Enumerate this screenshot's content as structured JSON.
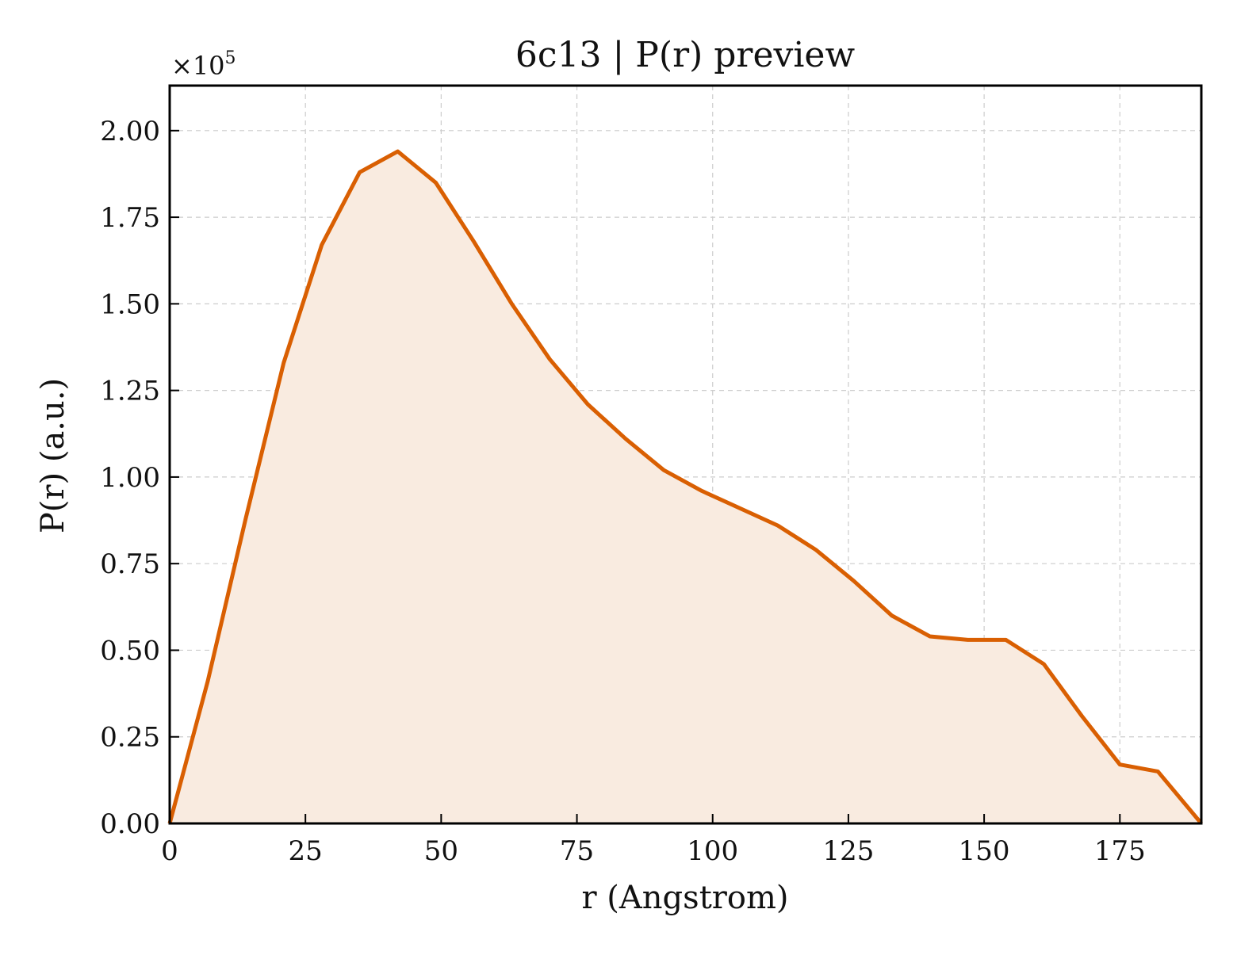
{
  "chart_data": {
    "type": "area",
    "title": "6c13 | P(r) preview",
    "xlabel": "r (Angstrom)",
    "ylabel": "P(r) (a.u.)",
    "y_scale_note": "×10",
    "y_scale_exponent": "5",
    "xlim": [
      0,
      190
    ],
    "ylim": [
      0,
      2.13
    ],
    "y_multiplier": 100000,
    "grid": true,
    "legend": "none",
    "line_color": "#d95f02",
    "fill_color": "#f9ebe0",
    "x_ticks": [
      0,
      25,
      50,
      75,
      100,
      125,
      150,
      175
    ],
    "x_tick_labels": [
      "0",
      "25",
      "50",
      "75",
      "100",
      "125",
      "150",
      "175"
    ],
    "y_ticks": [
      0,
      0.25,
      0.5,
      0.75,
      1.0,
      1.25,
      1.5,
      1.75,
      2.0
    ],
    "y_tick_labels": [
      "0.00",
      "0.25",
      "0.50",
      "0.75",
      "1.00",
      "1.25",
      "1.50",
      "1.75",
      "2.00"
    ],
    "series": [
      {
        "x": [
          0,
          7,
          14,
          21,
          28,
          35,
          42,
          49,
          56,
          63,
          70,
          77,
          84,
          91,
          98,
          105,
          112,
          119,
          126,
          133,
          140,
          147,
          154,
          161,
          168,
          175,
          182,
          190
        ],
        "values": [
          0.0,
          0.41,
          0.88,
          1.33,
          1.67,
          1.88,
          1.94,
          1.85,
          1.68,
          1.5,
          1.34,
          1.21,
          1.11,
          1.02,
          0.96,
          0.91,
          0.86,
          0.79,
          0.7,
          0.6,
          0.54,
          0.53,
          0.53,
          0.46,
          0.31,
          0.17,
          0.15,
          0.0
        ]
      }
    ]
  }
}
